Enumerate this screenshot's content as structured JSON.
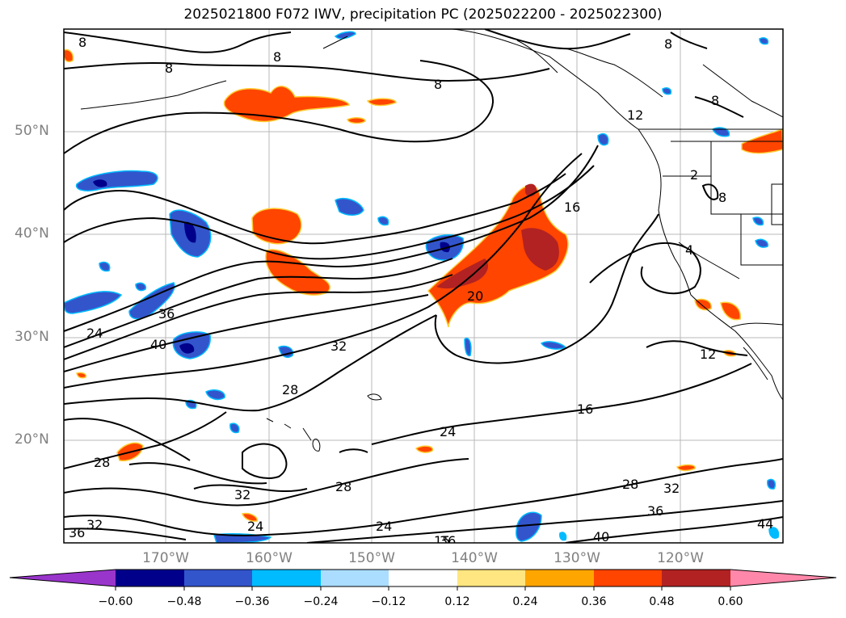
{
  "title": "2025021800 F072 IWV, precipitation PC (2025022200 - 2025022300)",
  "latitude_labels": [
    "50°N",
    "40°N",
    "30°N",
    "20°N"
  ],
  "longitude_labels": [
    "170°W",
    "160°W",
    "150°W",
    "140°W",
    "130°W",
    "120°W"
  ],
  "iwv_contour_labels": [
    "8",
    "8",
    "8",
    "8",
    "8",
    "12",
    "16",
    "20",
    "2",
    "8",
    "4",
    "12",
    "24",
    "36",
    "40",
    "32",
    "28",
    "24",
    "16",
    "28",
    "32",
    "28",
    "24",
    "32",
    "24",
    "36",
    "15",
    "28",
    "32",
    "36",
    "40",
    "44",
    "36",
    "8"
  ],
  "colorbar": {
    "ticks": [
      "−0.60",
      "−0.48",
      "−0.36",
      "−0.24",
      "−0.12",
      "0.12",
      "0.24",
      "0.36",
      "0.48",
      "0.60"
    ],
    "colors": [
      "#9a35cc",
      "#00008b",
      "#3355cc",
      "#00bbff",
      "#aaddff",
      "#ffffff",
      "#ffe680",
      "#ffa500",
      "#ff4500",
      "#b22222",
      "#ff88aa"
    ]
  }
}
